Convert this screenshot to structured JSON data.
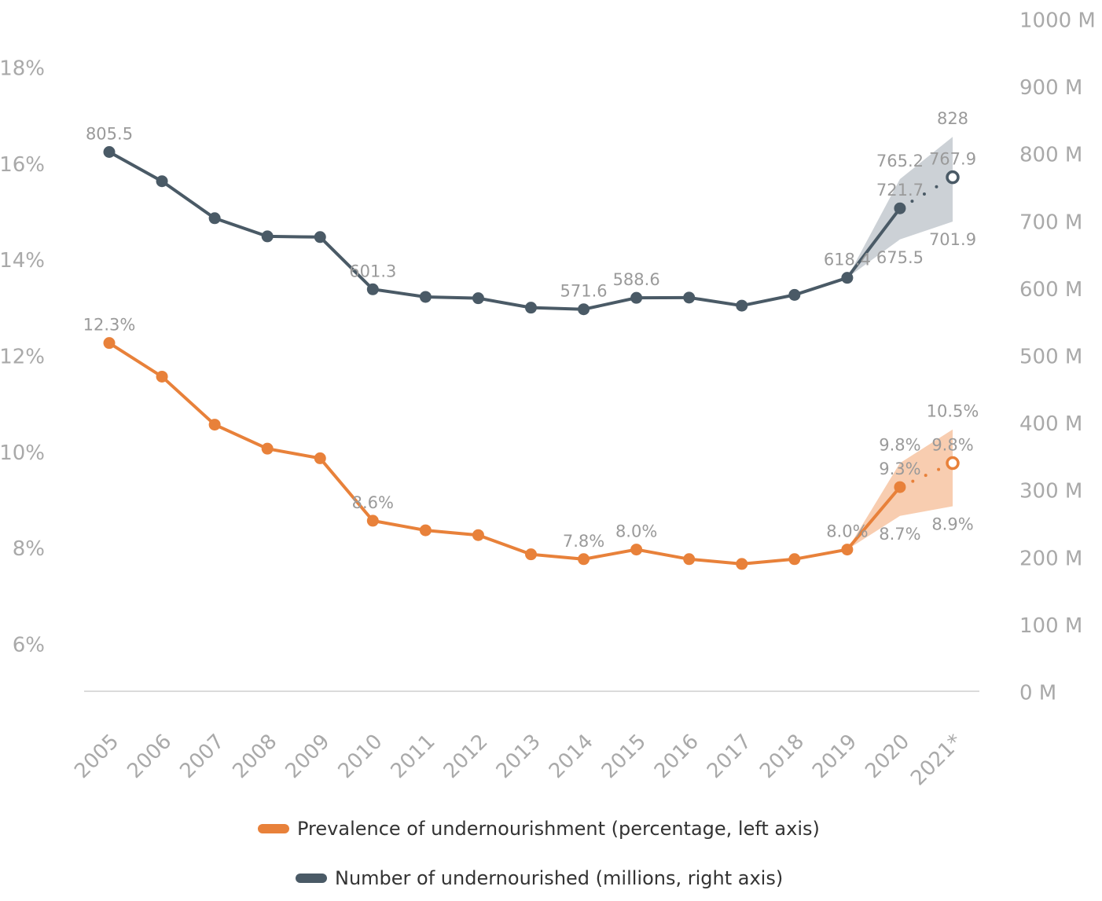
{
  "chart_data": {
    "type": "line",
    "categories": [
      "2005",
      "2006",
      "2007",
      "2008",
      "2009",
      "2010",
      "2011",
      "2012",
      "2013",
      "2014",
      "2015",
      "2016",
      "2017",
      "2018",
      "2019",
      "2020",
      "2021*"
    ],
    "ylim": [
      5,
      19
    ],
    "yticks": [
      {
        "value": 6,
        "label": "6%"
      },
      {
        "value": 8,
        "label": "8%"
      },
      {
        "value": 10,
        "label": "10%"
      },
      {
        "value": 12,
        "label": "12%"
      },
      {
        "value": 14,
        "label": "14%"
      },
      {
        "value": 16,
        "label": "16%"
      },
      {
        "value": 18,
        "label": "18%"
      }
    ],
    "y2lim": [
      0,
      1000
    ],
    "y2ticks": [
      {
        "value": 0,
        "label": "0 M"
      },
      {
        "value": 100,
        "label": "100 M"
      },
      {
        "value": 200,
        "label": "200 M"
      },
      {
        "value": 300,
        "label": "300 M"
      },
      {
        "value": 400,
        "label": "400 M"
      },
      {
        "value": 500,
        "label": "500 M"
      },
      {
        "value": 600,
        "label": "600 M"
      },
      {
        "value": 700,
        "label": "700 M"
      },
      {
        "value": 800,
        "label": "800 M"
      },
      {
        "value": 900,
        "label": "900 M"
      },
      {
        "value": 1000,
        "label": "1000 M"
      }
    ],
    "last_segment_style": "dotted",
    "series": [
      {
        "name": "Prevalence of undernourishment (percentage, left axis)",
        "color": "#e8813a",
        "band_color": "#f7c4a2",
        "axis": "y",
        "values": [
          12.3,
          11.6,
          10.6,
          10.1,
          9.9,
          8.6,
          8.4,
          8.3,
          7.9,
          7.8,
          8.0,
          7.8,
          7.7,
          7.8,
          8.0,
          9.3,
          9.8
        ],
        "value_labels": [
          "12.3%",
          null,
          null,
          null,
          null,
          "8.6%",
          null,
          null,
          null,
          "7.8%",
          "8.0%",
          null,
          null,
          null,
          "8.0%",
          "9.3%",
          "9.8%"
        ],
        "lower": [
          null,
          null,
          null,
          null,
          null,
          null,
          null,
          null,
          null,
          null,
          null,
          null,
          null,
          null,
          8.0,
          8.7,
          8.9
        ],
        "upper": [
          null,
          null,
          null,
          null,
          null,
          null,
          null,
          null,
          null,
          null,
          null,
          null,
          null,
          null,
          8.0,
          9.8,
          10.5
        ],
        "lower_labels": [
          null,
          null,
          null,
          null,
          null,
          null,
          null,
          null,
          null,
          null,
          null,
          null,
          null,
          null,
          null,
          "8.7%",
          "8.9%"
        ],
        "upper_labels": [
          null,
          null,
          null,
          null,
          null,
          null,
          null,
          null,
          null,
          null,
          null,
          null,
          null,
          null,
          null,
          "9.8%",
          "10.5%"
        ]
      },
      {
        "name": "Number of undernourished (millions, right axis)",
        "color": "#4a5a66",
        "band_color": "#c3c9cf",
        "axis": "y2",
        "values": [
          805.5,
          762,
          707,
          680,
          679,
          601.3,
          590,
          588,
          574,
          571.6,
          588.6,
          589,
          577,
          593,
          618.4,
          721.7,
          767.9
        ],
        "value_labels": [
          "805.5",
          null,
          null,
          null,
          null,
          "601.3",
          null,
          null,
          null,
          "571.6",
          "588.6",
          null,
          null,
          null,
          "618.4",
          "721.7",
          "767.9"
        ],
        "lower": [
          null,
          null,
          null,
          null,
          null,
          null,
          null,
          null,
          null,
          null,
          null,
          null,
          null,
          null,
          618.4,
          675.5,
          701.9
        ],
        "upper": [
          null,
          null,
          null,
          null,
          null,
          null,
          null,
          null,
          null,
          null,
          null,
          null,
          null,
          null,
          618.4,
          765.2,
          828
        ],
        "lower_labels": [
          null,
          null,
          null,
          null,
          null,
          null,
          null,
          null,
          null,
          null,
          null,
          null,
          null,
          null,
          null,
          "675.5",
          "701.9"
        ],
        "upper_labels": [
          null,
          null,
          null,
          null,
          null,
          null,
          null,
          null,
          null,
          null,
          null,
          null,
          null,
          null,
          null,
          "765.2",
          "828"
        ]
      }
    ]
  }
}
